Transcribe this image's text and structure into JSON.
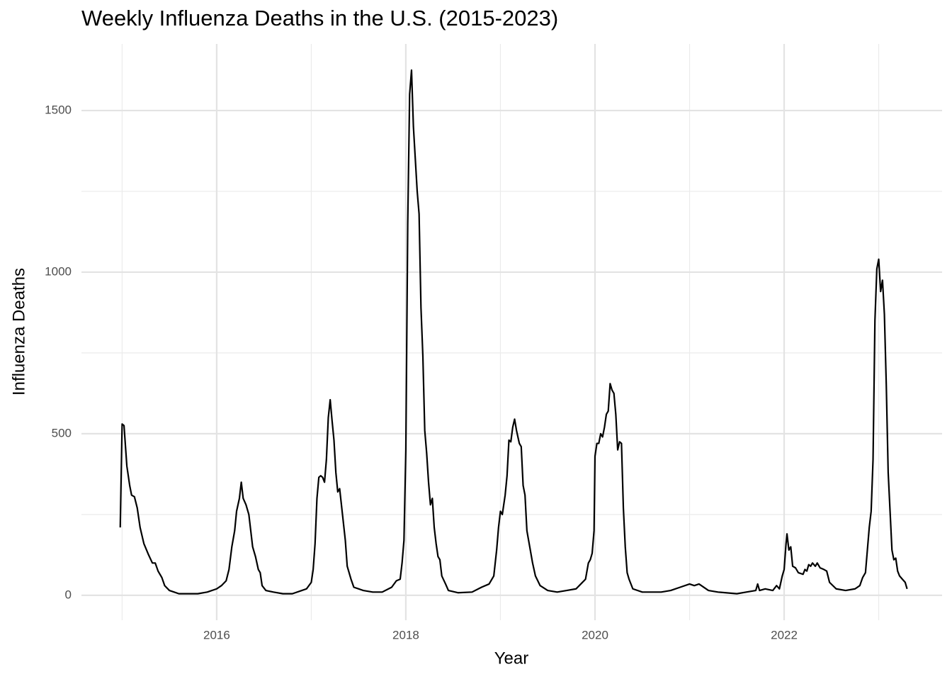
{
  "chart_data": {
    "type": "line",
    "title": "Weekly Influenza Deaths in the U.S. (2015-2023)",
    "x_label": "Year",
    "y_label": "Influenza Deaths",
    "xlim": [
      2014.57,
      2023.67
    ],
    "ylim": [
      -77,
      1706
    ],
    "xticks": [
      2016,
      2018,
      2020,
      2022
    ],
    "yticks": [
      0,
      500,
      1000,
      1500
    ],
    "grid": true,
    "series": [
      {
        "name": "Influenza Deaths",
        "color": "#000000",
        "x": [
          2014.98,
          2015.0,
          2015.02,
          2015.05,
          2015.08,
          2015.1,
          2015.13,
          2015.16,
          2015.19,
          2015.23,
          2015.28,
          2015.32,
          2015.35,
          2015.38,
          2015.42,
          2015.45,
          2015.5,
          2015.55,
          2015.6,
          2015.7,
          2015.8,
          2015.9,
          2016.0,
          2016.05,
          2016.1,
          2016.13,
          2016.16,
          2016.19,
          2016.21,
          2016.24,
          2016.26,
          2016.28,
          2016.31,
          2016.34,
          2016.38,
          2016.41,
          2016.44,
          2016.46,
          2016.48,
          2016.52,
          2016.6,
          2016.7,
          2016.8,
          2016.9,
          2016.95,
          2017.0,
          2017.02,
          2017.04,
          2017.06,
          2017.08,
          2017.1,
          2017.12,
          2017.14,
          2017.16,
          2017.18,
          2017.2,
          2017.22,
          2017.24,
          2017.26,
          2017.28,
          2017.3,
          2017.33,
          2017.36,
          2017.38,
          2017.42,
          2017.45,
          2017.55,
          2017.65,
          2017.75,
          2017.85,
          2017.9,
          2017.94,
          2017.96,
          2017.98,
          2018.0,
          2018.02,
          2018.04,
          2018.06,
          2018.08,
          2018.1,
          2018.12,
          2018.14,
          2018.16,
          2018.18,
          2018.2,
          2018.22,
          2018.24,
          2018.26,
          2018.28,
          2018.3,
          2018.32,
          2018.34,
          2018.36,
          2018.38,
          2018.42,
          2018.45,
          2018.55,
          2018.7,
          2018.8,
          2018.88,
          2018.93,
          2018.96,
          2018.98,
          2019.0,
          2019.02,
          2019.05,
          2019.07,
          2019.09,
          2019.11,
          2019.13,
          2019.15,
          2019.17,
          2019.2,
          2019.22,
          2019.24,
          2019.26,
          2019.28,
          2019.31,
          2019.34,
          2019.37,
          2019.42,
          2019.5,
          2019.6,
          2019.7,
          2019.8,
          2019.85,
          2019.9,
          2019.93,
          2019.95,
          2019.97,
          2019.99,
          2020.0,
          2020.02,
          2020.04,
          2020.06,
          2020.08,
          2020.1,
          2020.12,
          2020.14,
          2020.16,
          2020.18,
          2020.2,
          2020.22,
          2020.24,
          2020.26,
          2020.28,
          2020.3,
          2020.32,
          2020.34,
          2020.36,
          2020.4,
          2020.5,
          2020.6,
          2020.7,
          2020.8,
          2020.9,
          2021.0,
          2021.05,
          2021.1,
          2021.2,
          2021.3,
          2021.5,
          2021.6,
          2021.7,
          2021.72,
          2021.74,
          2021.8,
          2021.88,
          2021.92,
          2021.95,
          2021.98,
          2022.0,
          2022.02,
          2022.03,
          2022.05,
          2022.07,
          2022.09,
          2022.12,
          2022.15,
          2022.2,
          2022.22,
          2022.24,
          2022.26,
          2022.28,
          2022.3,
          2022.33,
          2022.35,
          2022.38,
          2022.42,
          2022.45,
          2022.48,
          2022.55,
          2022.65,
          2022.75,
          2022.8,
          2022.83,
          2022.86,
          2022.88,
          2022.9,
          2022.92,
          2022.94,
          2022.96,
          2022.98,
          2023.0,
          2023.02,
          2023.04,
          2023.06,
          2023.08,
          2023.1,
          2023.12,
          2023.14,
          2023.16,
          2023.18,
          2023.2,
          2023.22,
          2023.25,
          2023.28,
          2023.3
        ],
        "values": [
          210,
          530,
          525,
          400,
          340,
          310,
          305,
          270,
          210,
          160,
          125,
          100,
          100,
          75,
          55,
          30,
          15,
          10,
          5,
          5,
          5,
          10,
          20,
          30,
          45,
          80,
          150,
          200,
          260,
          300,
          350,
          300,
          280,
          250,
          150,
          120,
          80,
          70,
          30,
          15,
          10,
          5,
          5,
          15,
          20,
          40,
          80,
          160,
          300,
          365,
          370,
          365,
          350,
          420,
          550,
          605,
          540,
          480,
          380,
          320,
          330,
          250,
          170,
          90,
          50,
          25,
          15,
          10,
          10,
          25,
          45,
          50,
          100,
          170,
          450,
          1150,
          1550,
          1625,
          1450,
          1350,
          1250,
          1180,
          890,
          740,
          510,
          440,
          350,
          280,
          300,
          210,
          160,
          120,
          110,
          60,
          35,
          15,
          8,
          10,
          25,
          35,
          60,
          140,
          210,
          260,
          250,
          310,
          370,
          480,
          475,
          520,
          545,
          510,
          470,
          460,
          340,
          310,
          200,
          150,
          100,
          60,
          30,
          15,
          10,
          15,
          20,
          35,
          50,
          100,
          110,
          130,
          200,
          430,
          470,
          470,
          500,
          490,
          520,
          560,
          570,
          655,
          635,
          625,
          560,
          450,
          475,
          470,
          270,
          150,
          70,
          50,
          20,
          10,
          10,
          10,
          15,
          25,
          35,
          30,
          35,
          15,
          10,
          5,
          10,
          15,
          35,
          15,
          20,
          15,
          30,
          20,
          60,
          80,
          160,
          190,
          140,
          150,
          90,
          85,
          70,
          65,
          80,
          75,
          95,
          90,
          100,
          90,
          100,
          85,
          80,
          75,
          40,
          20,
          15,
          20,
          30,
          55,
          70,
          140,
          210,
          260,
          420,
          850,
          1010,
          1040,
          940,
          975,
          870,
          650,
          380,
          260,
          140,
          110,
          115,
          75,
          60,
          50,
          40,
          20
        ]
      }
    ]
  }
}
